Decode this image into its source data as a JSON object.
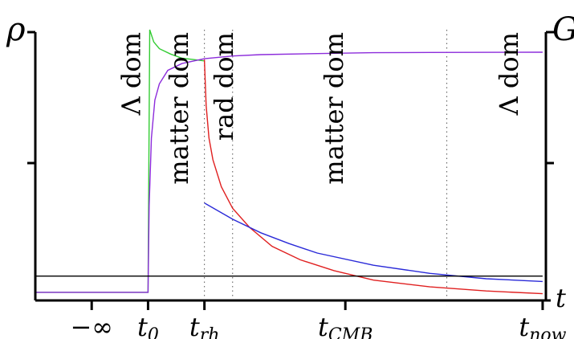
{
  "chart_data": {
    "type": "line",
    "title": "",
    "xlabel": "t",
    "ylabel_left": "ρ",
    "ylabel_right": "G",
    "grid": false,
    "legend": "none",
    "x_ticks": [
      {
        "key": "neg_inf",
        "main": "−∞",
        "sub": "",
        "x": 0
      },
      {
        "key": "t0",
        "main": "t",
        "sub": "0",
        "x": 1
      },
      {
        "key": "trh",
        "main": "t",
        "sub": "rh",
        "x": 2
      },
      {
        "key": "tcmb",
        "main": "t",
        "sub": "CMB",
        "x": 4.5
      },
      {
        "key": "tnow",
        "main": "t",
        "sub": "now",
        "x": 8
      }
    ],
    "era_labels": [
      {
        "key": "lambda1",
        "text": "Λ dom",
        "x": 0.7
      },
      {
        "key": "matter1",
        "text": "matter dom",
        "x": 1.55
      },
      {
        "key": "rad",
        "text": "rad dom",
        "x": 2.35
      },
      {
        "key": "matter2",
        "text": "matter dom",
        "x": 4.3
      },
      {
        "key": "lambda2",
        "text": "Λ dom",
        "x": 7.4
      }
    ],
    "vlines": [
      2,
      2.5,
      6.3
    ],
    "xlim": [
      -1,
      8.3
    ],
    "ylim": [
      0,
      1
    ],
    "series": [
      {
        "key": "green",
        "color": "#33cc33",
        "points": [
          [
            -1,
            0.03
          ],
          [
            1,
            0.03
          ],
          [
            1.03,
            1.0
          ],
          [
            1.1,
            0.955
          ],
          [
            1.2,
            0.93
          ],
          [
            1.4,
            0.91
          ],
          [
            1.6,
            0.895
          ],
          [
            1.8,
            0.89
          ],
          [
            2,
            0.885
          ]
        ]
      },
      {
        "key": "purple",
        "color": "#8c2cdb",
        "points": [
          [
            -1,
            0.03
          ],
          [
            1,
            0.03
          ],
          [
            1.02,
            0.35
          ],
          [
            1.06,
            0.6
          ],
          [
            1.12,
            0.74
          ],
          [
            1.2,
            0.8
          ],
          [
            1.35,
            0.85
          ],
          [
            1.6,
            0.875
          ],
          [
            2,
            0.893
          ],
          [
            2.5,
            0.903
          ],
          [
            3,
            0.908
          ],
          [
            4,
            0.912
          ],
          [
            5,
            0.915
          ],
          [
            6,
            0.916
          ],
          [
            8,
            0.917
          ]
        ]
      },
      {
        "key": "red",
        "color": "#e02020",
        "points": [
          [
            2,
            0.89
          ],
          [
            2.03,
            0.72
          ],
          [
            2.08,
            0.6
          ],
          [
            2.15,
            0.52
          ],
          [
            2.3,
            0.42
          ],
          [
            2.5,
            0.34
          ],
          [
            2.8,
            0.27
          ],
          [
            3.2,
            0.2
          ],
          [
            3.7,
            0.15
          ],
          [
            4.3,
            0.11
          ],
          [
            5,
            0.075
          ],
          [
            6,
            0.05
          ],
          [
            7,
            0.035
          ],
          [
            8,
            0.025
          ]
        ]
      },
      {
        "key": "blue",
        "color": "#2a2ad8",
        "points": [
          [
            2,
            0.36
          ],
          [
            2.5,
            0.3
          ],
          [
            3,
            0.25
          ],
          [
            3.5,
            0.21
          ],
          [
            4,
            0.175
          ],
          [
            5,
            0.13
          ],
          [
            6,
            0.1
          ],
          [
            7,
            0.08
          ],
          [
            8,
            0.07
          ]
        ]
      },
      {
        "key": "black",
        "color": "#000000",
        "points": [
          [
            -1,
            0.09
          ],
          [
            8,
            0.09
          ]
        ]
      }
    ]
  }
}
